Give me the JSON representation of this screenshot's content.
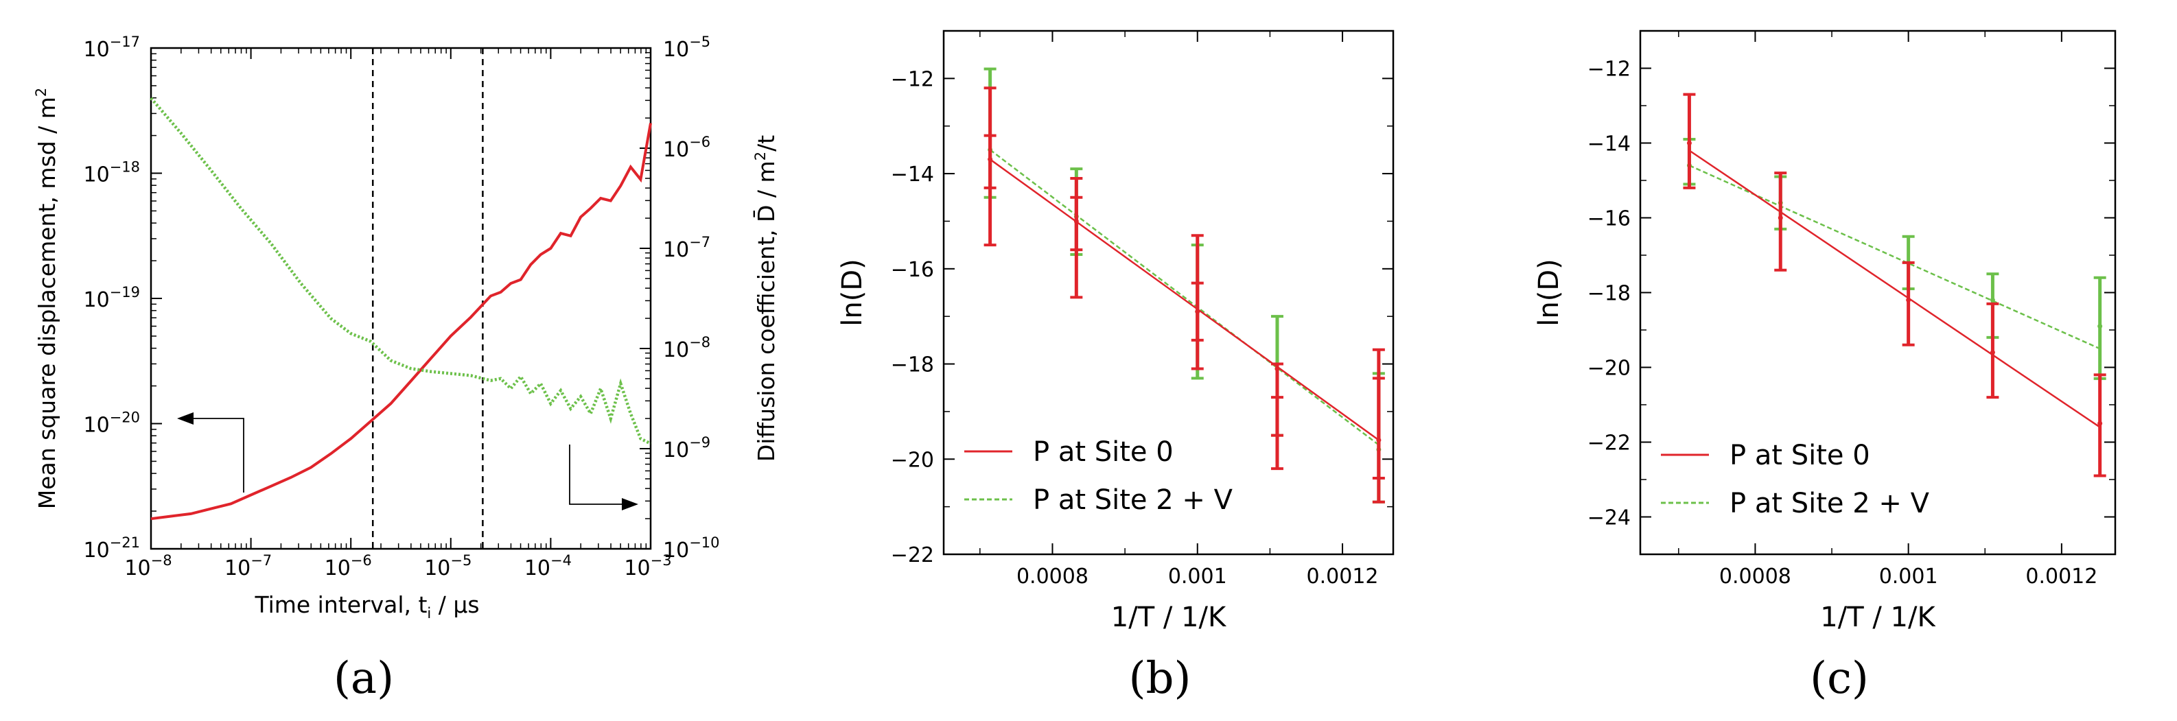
{
  "colors": {
    "red": "#e0242b",
    "green": "#6cc04a",
    "black": "#000000"
  },
  "panel_labels": [
    "(a)",
    "(b)",
    "(c)"
  ],
  "chart_data": [
    {
      "id": "a",
      "type": "line",
      "xlabel_main": "Time interval, t",
      "xlabel_sub": "i",
      "xlabel_unit": " / µs",
      "ylabel": "Mean square displacement,  msd / m",
      "ylabel_sup": "2",
      "y2label": "Diffusion coefficient, D̄ / m",
      "y2label_sup": "2",
      "y2label_end": "/t",
      "xscale": "log",
      "yscale": "log",
      "y2scale": "log",
      "xlim": [
        -8,
        -3
      ],
      "ylim": [
        -21,
        -17
      ],
      "y2lim": [
        -10,
        -5
      ],
      "xticks": [
        -8,
        -7,
        -6,
        -5,
        -4,
        -3
      ],
      "yticks": [
        -21,
        -20,
        -19,
        -18,
        -17
      ],
      "y2ticks": [
        -10,
        -9,
        -8,
        -7,
        -6,
        -5
      ],
      "tick_base": "10",
      "vlines_log10": [
        -5.78,
        -4.68
      ],
      "annotations": [
        "arrow-left-to-msd-axis",
        "arrow-right-to-D-axis"
      ],
      "series": [
        {
          "key": "msd",
          "axis": "left",
          "color": "#e0242b",
          "style": "solid",
          "x": [
            -8,
            -7.8,
            -7.6,
            -7.4,
            -7.2,
            -7.0,
            -6.8,
            -6.6,
            -6.4,
            -6.2,
            -6.0,
            -5.8,
            -5.6,
            -5.4,
            -5.2,
            -5.0,
            -4.8,
            -4.6,
            -4.5,
            -4.4,
            -4.3,
            -4.2,
            -4.1,
            -4.0,
            -3.9,
            -3.8,
            -3.7,
            -3.6,
            -3.5,
            -3.4,
            -3.3,
            -3.2,
            -3.1,
            -3.0
          ],
          "y": [
            -20.76,
            -20.74,
            -20.72,
            -20.68,
            -20.64,
            -20.57,
            -20.5,
            -20.43,
            -20.35,
            -20.24,
            -20.12,
            -19.98,
            -19.84,
            -19.66,
            -19.48,
            -19.3,
            -19.15,
            -18.98,
            -18.95,
            -18.88,
            -18.85,
            -18.73,
            -18.65,
            -18.6,
            -18.48,
            -18.5,
            -18.35,
            -18.28,
            -18.2,
            -18.22,
            -18.1,
            -17.95,
            -18.05,
            -17.6
          ]
        },
        {
          "key": "D",
          "axis": "right",
          "color": "#6cc04a",
          "style": "dotted",
          "x": [
            -8,
            -7.7,
            -7.4,
            -7.1,
            -6.8,
            -6.5,
            -6.2,
            -6.0,
            -5.8,
            -5.6,
            -5.4,
            -5.2,
            -5.0,
            -4.8,
            -4.6,
            -4.5,
            -4.4,
            -4.3,
            -4.2,
            -4.1,
            -4.0,
            -3.9,
            -3.8,
            -3.7,
            -3.6,
            -3.5,
            -3.4,
            -3.3,
            -3.2,
            -3.1,
            -3.0
          ],
          "y": [
            -5.5,
            -5.85,
            -6.22,
            -6.6,
            -6.95,
            -7.35,
            -7.7,
            -7.85,
            -7.93,
            -8.12,
            -8.2,
            -8.23,
            -8.25,
            -8.27,
            -8.32,
            -8.3,
            -8.4,
            -8.28,
            -8.45,
            -8.35,
            -8.55,
            -8.42,
            -8.6,
            -8.48,
            -8.65,
            -8.4,
            -8.7,
            -8.35,
            -8.65,
            -8.9,
            -8.95
          ]
        }
      ]
    },
    {
      "id": "b",
      "type": "line",
      "xlabel": "1/T / 1/K",
      "ylabel": "ln(D)",
      "xlim": [
        0.00065,
        0.00127
      ],
      "ylim": [
        -22,
        -11
      ],
      "xticks": [
        "0.0008",
        "0.001",
        "0.0012"
      ],
      "xtick_values": [
        0.0008,
        0.001,
        0.0012
      ],
      "yticks": [
        -22,
        -20,
        -18,
        -16,
        -14,
        -12
      ],
      "legend_position": "lower-left",
      "series": [
        {
          "name": "P at Site 0",
          "color": "#e0242b",
          "style": "solid",
          "fit": [
            [
              0.000714,
              -13.7
            ],
            [
              0.00125,
              -19.6
            ]
          ],
          "points": [
            {
              "x": 0.000714,
              "center": -13.7,
              "errs": [
                [
                  -15.5,
                  -12.2
                ],
                [
                  -14.3,
                  -13.2
                ]
              ]
            },
            {
              "x": 0.000833,
              "center": -15.0,
              "errs": [
                [
                  -16.6,
                  -14.1
                ],
                [
                  -15.6,
                  -14.5
                ]
              ]
            },
            {
              "x": 0.001,
              "center": -16.9,
              "errs": [
                [
                  -18.1,
                  -15.3
                ],
                [
                  -17.5,
                  -16.3
                ]
              ]
            },
            {
              "x": 0.00111,
              "center": -18.1,
              "errs": [
                [
                  -20.2,
                  -18.0
                ],
                [
                  -19.5,
                  -18.7
                ]
              ]
            },
            {
              "x": 0.00125,
              "center": -19.6,
              "errs": [
                [
                  -20.9,
                  -17.7
                ],
                [
                  -20.4,
                  -18.3
                ]
              ]
            }
          ]
        },
        {
          "name": "P at Site 2 + V",
          "color": "#6cc04a",
          "style": "dashed",
          "fit": [
            [
              0.000714,
              -13.5
            ],
            [
              0.00125,
              -19.7
            ]
          ],
          "points": [
            {
              "x": 0.000714,
              "center": -13.5,
              "errs": [
                [
                  -14.5,
                  -11.8
                ]
              ]
            },
            {
              "x": 0.000833,
              "center": -14.9,
              "errs": [
                [
                  -15.7,
                  -13.9
                ]
              ]
            },
            {
              "x": 0.001,
              "center": -16.9,
              "errs": [
                [
                  -18.3,
                  -15.5
                ]
              ]
            },
            {
              "x": 0.00111,
              "center": -18.1,
              "errs": [
                [
                  -19.5,
                  -17.0
                ]
              ]
            },
            {
              "x": 0.00125,
              "center": -19.8,
              "errs": [
                [
                  -20.9,
                  -18.2
                ]
              ]
            }
          ]
        }
      ]
    },
    {
      "id": "c",
      "type": "line",
      "xlabel": "1/T / 1/K",
      "ylabel": "ln(D)",
      "xlim": [
        0.00065,
        0.00127
      ],
      "ylim": [
        -25,
        -11
      ],
      "xticks": [
        "0.0008",
        "0.001",
        "0.0012"
      ],
      "xtick_values": [
        0.0008,
        0.001,
        0.0012
      ],
      "yticks": [
        -24,
        -22,
        -20,
        -18,
        -16,
        -14,
        -12
      ],
      "legend_position": "lower-left",
      "series": [
        {
          "name": "P at Site 0",
          "color": "#e0242b",
          "style": "solid",
          "fit": [
            [
              0.000714,
              -14.2
            ],
            [
              0.00125,
              -21.6
            ]
          ],
          "points": [
            {
              "x": 0.000714,
              "center": -14.0,
              "errs": [
                [
                  -15.2,
                  -12.7
                ]
              ]
            },
            {
              "x": 0.000833,
              "center": -16.0,
              "errs": [
                [
                  -17.4,
                  -14.8
                ]
              ]
            },
            {
              "x": 0.001,
              "center": -18.2,
              "errs": [
                [
                  -19.4,
                  -17.2
                ]
              ]
            },
            {
              "x": 0.00111,
              "center": -19.6,
              "errs": [
                [
                  -20.8,
                  -18.3
                ]
              ]
            },
            {
              "x": 0.00125,
              "center": -21.5,
              "errs": [
                [
                  -22.9,
                  -20.2
                ]
              ]
            }
          ]
        },
        {
          "name": "P at Site 2 + V",
          "color": "#6cc04a",
          "style": "dashed",
          "fit": [
            [
              0.000714,
              -14.6
            ],
            [
              0.00125,
              -19.5
            ]
          ],
          "points": [
            {
              "x": 0.000714,
              "center": -14.6,
              "errs": [
                [
                  -15.1,
                  -13.9
                ]
              ]
            },
            {
              "x": 0.000833,
              "center": -15.6,
              "errs": [
                [
                  -16.3,
                  -14.9
                ]
              ]
            },
            {
              "x": 0.001,
              "center": -17.2,
              "errs": [
                [
                  -17.9,
                  -16.5
                ]
              ]
            },
            {
              "x": 0.00111,
              "center": -18.2,
              "errs": [
                [
                  -19.2,
                  -17.5
                ]
              ]
            },
            {
              "x": 0.00125,
              "center": -18.9,
              "errs": [
                [
                  -20.3,
                  -17.6
                ]
              ]
            }
          ]
        }
      ]
    }
  ]
}
